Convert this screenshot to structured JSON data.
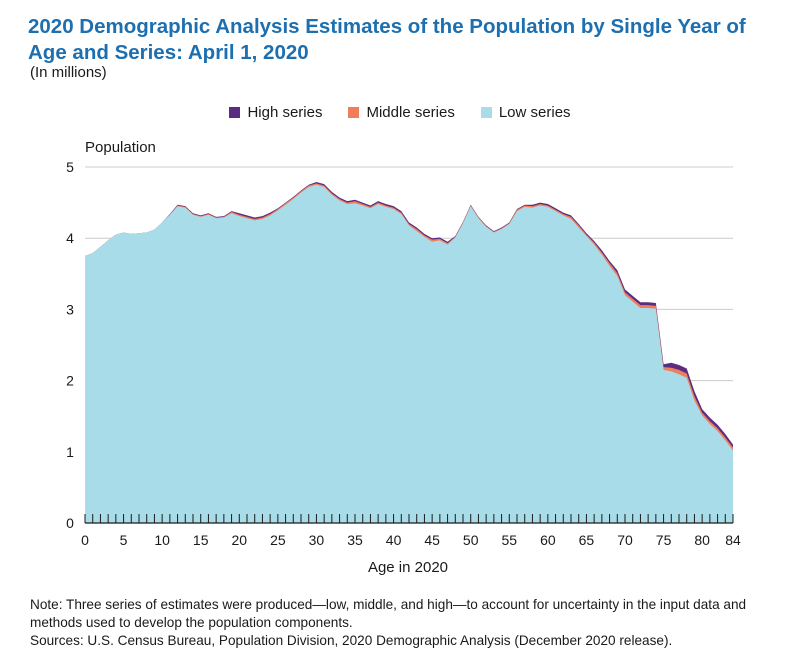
{
  "title": "2020 Demographic Analysis Estimates of the Population by Single Year of Age and Series: April 1, 2020",
  "subtitle": "(In millions)",
  "note": "Note: Three series of estimates were produced—low, middle, and high—to account for uncertainty in the input data and methods used to develop the population components.",
  "source": "Sources: U.S. Census Bureau, Population Division, 2020 Demographic Analysis (December 2020 release).",
  "colors": {
    "high": "#5a2d82",
    "middle": "#f07e5c",
    "low": "#a8dce8",
    "title": "#1d6fb0",
    "grid": "#cccccc"
  },
  "chart_data": {
    "type": "area",
    "ylabel": "Population",
    "xlabel": "Age in 2020",
    "xlim": [
      0,
      84
    ],
    "ylim": [
      0,
      5
    ],
    "x_ticks": [
      0,
      5,
      10,
      15,
      20,
      25,
      30,
      35,
      40,
      45,
      50,
      55,
      60,
      65,
      70,
      75,
      80,
      84
    ],
    "y_ticks": [
      0,
      1,
      2,
      3,
      4,
      5
    ],
    "grid": "horizontal",
    "legend_position": "top",
    "x": [
      0,
      1,
      2,
      3,
      4,
      5,
      6,
      7,
      8,
      9,
      10,
      11,
      12,
      13,
      14,
      15,
      16,
      17,
      18,
      19,
      20,
      21,
      22,
      23,
      24,
      25,
      26,
      27,
      28,
      29,
      30,
      31,
      32,
      33,
      34,
      35,
      36,
      37,
      38,
      39,
      40,
      41,
      42,
      43,
      44,
      45,
      46,
      47,
      48,
      49,
      50,
      51,
      52,
      53,
      54,
      55,
      56,
      57,
      58,
      59,
      60,
      61,
      62,
      63,
      64,
      65,
      66,
      67,
      68,
      69,
      70,
      71,
      72,
      73,
      74,
      75,
      76,
      77,
      78,
      79,
      80,
      81,
      82,
      83,
      84
    ],
    "series": [
      {
        "name": "High series",
        "values": [
          3.75,
          3.79,
          3.88,
          3.97,
          4.05,
          4.08,
          4.06,
          4.07,
          4.08,
          4.12,
          4.22,
          4.34,
          4.47,
          4.45,
          4.35,
          4.32,
          4.35,
          4.3,
          4.31,
          4.38,
          4.35,
          4.32,
          4.29,
          4.31,
          4.36,
          4.42,
          4.5,
          4.58,
          4.67,
          4.75,
          4.79,
          4.76,
          4.65,
          4.57,
          4.52,
          4.54,
          4.5,
          4.46,
          4.52,
          4.48,
          4.45,
          4.38,
          4.22,
          4.15,
          4.06,
          4.0,
          4.01,
          3.95,
          4.03,
          4.23,
          4.47,
          4.3,
          4.18,
          4.1,
          4.15,
          4.22,
          4.41,
          4.47,
          4.47,
          4.5,
          4.48,
          4.42,
          4.36,
          4.32,
          4.2,
          4.07,
          3.96,
          3.83,
          3.68,
          3.55,
          3.28,
          3.19,
          3.1,
          3.1,
          3.09,
          2.23,
          2.25,
          2.22,
          2.17,
          1.85,
          1.6,
          1.48,
          1.38,
          1.25,
          1.1
        ]
      },
      {
        "name": "Middle series",
        "values": [
          3.75,
          3.79,
          3.88,
          3.97,
          4.05,
          4.08,
          4.06,
          4.07,
          4.08,
          4.12,
          4.22,
          4.33,
          4.46,
          4.44,
          4.34,
          4.31,
          4.34,
          4.29,
          4.3,
          4.37,
          4.33,
          4.3,
          4.27,
          4.29,
          4.34,
          4.41,
          4.49,
          4.57,
          4.66,
          4.74,
          4.77,
          4.74,
          4.63,
          4.55,
          4.5,
          4.52,
          4.48,
          4.44,
          4.5,
          4.46,
          4.43,
          4.36,
          4.2,
          4.13,
          4.04,
          3.98,
          3.99,
          3.93,
          4.02,
          4.22,
          4.46,
          4.29,
          4.17,
          4.09,
          4.14,
          4.21,
          4.4,
          4.46,
          4.45,
          4.48,
          4.46,
          4.4,
          4.34,
          4.3,
          4.18,
          4.05,
          3.94,
          3.8,
          3.65,
          3.51,
          3.24,
          3.15,
          3.06,
          3.06,
          3.05,
          2.19,
          2.18,
          2.15,
          2.1,
          1.78,
          1.55,
          1.43,
          1.33,
          1.2,
          1.06
        ]
      },
      {
        "name": "Low series",
        "values": [
          3.75,
          3.79,
          3.88,
          3.97,
          4.05,
          4.08,
          4.06,
          4.07,
          4.08,
          4.12,
          4.22,
          4.33,
          4.45,
          4.43,
          4.33,
          4.3,
          4.33,
          4.28,
          4.29,
          4.35,
          4.31,
          4.28,
          4.25,
          4.27,
          4.32,
          4.39,
          4.47,
          4.55,
          4.64,
          4.72,
          4.75,
          4.72,
          4.61,
          4.53,
          4.48,
          4.49,
          4.46,
          4.42,
          4.48,
          4.44,
          4.41,
          4.34,
          4.18,
          4.1,
          4.02,
          3.95,
          3.97,
          3.91,
          4.01,
          4.21,
          4.45,
          4.28,
          4.16,
          4.08,
          4.13,
          4.2,
          4.38,
          4.44,
          4.43,
          4.46,
          4.44,
          4.38,
          4.32,
          4.27,
          4.15,
          4.03,
          3.91,
          3.77,
          3.61,
          3.47,
          3.2,
          3.11,
          3.02,
          3.02,
          3.01,
          2.15,
          2.13,
          2.09,
          2.04,
          1.72,
          1.51,
          1.39,
          1.29,
          1.16,
          1.02
        ]
      }
    ]
  },
  "legend": [
    {
      "label": "High series",
      "color": "#5a2d82"
    },
    {
      "label": "Middle series",
      "color": "#f07e5c"
    },
    {
      "label": "Low series",
      "color": "#a8dce8"
    }
  ]
}
